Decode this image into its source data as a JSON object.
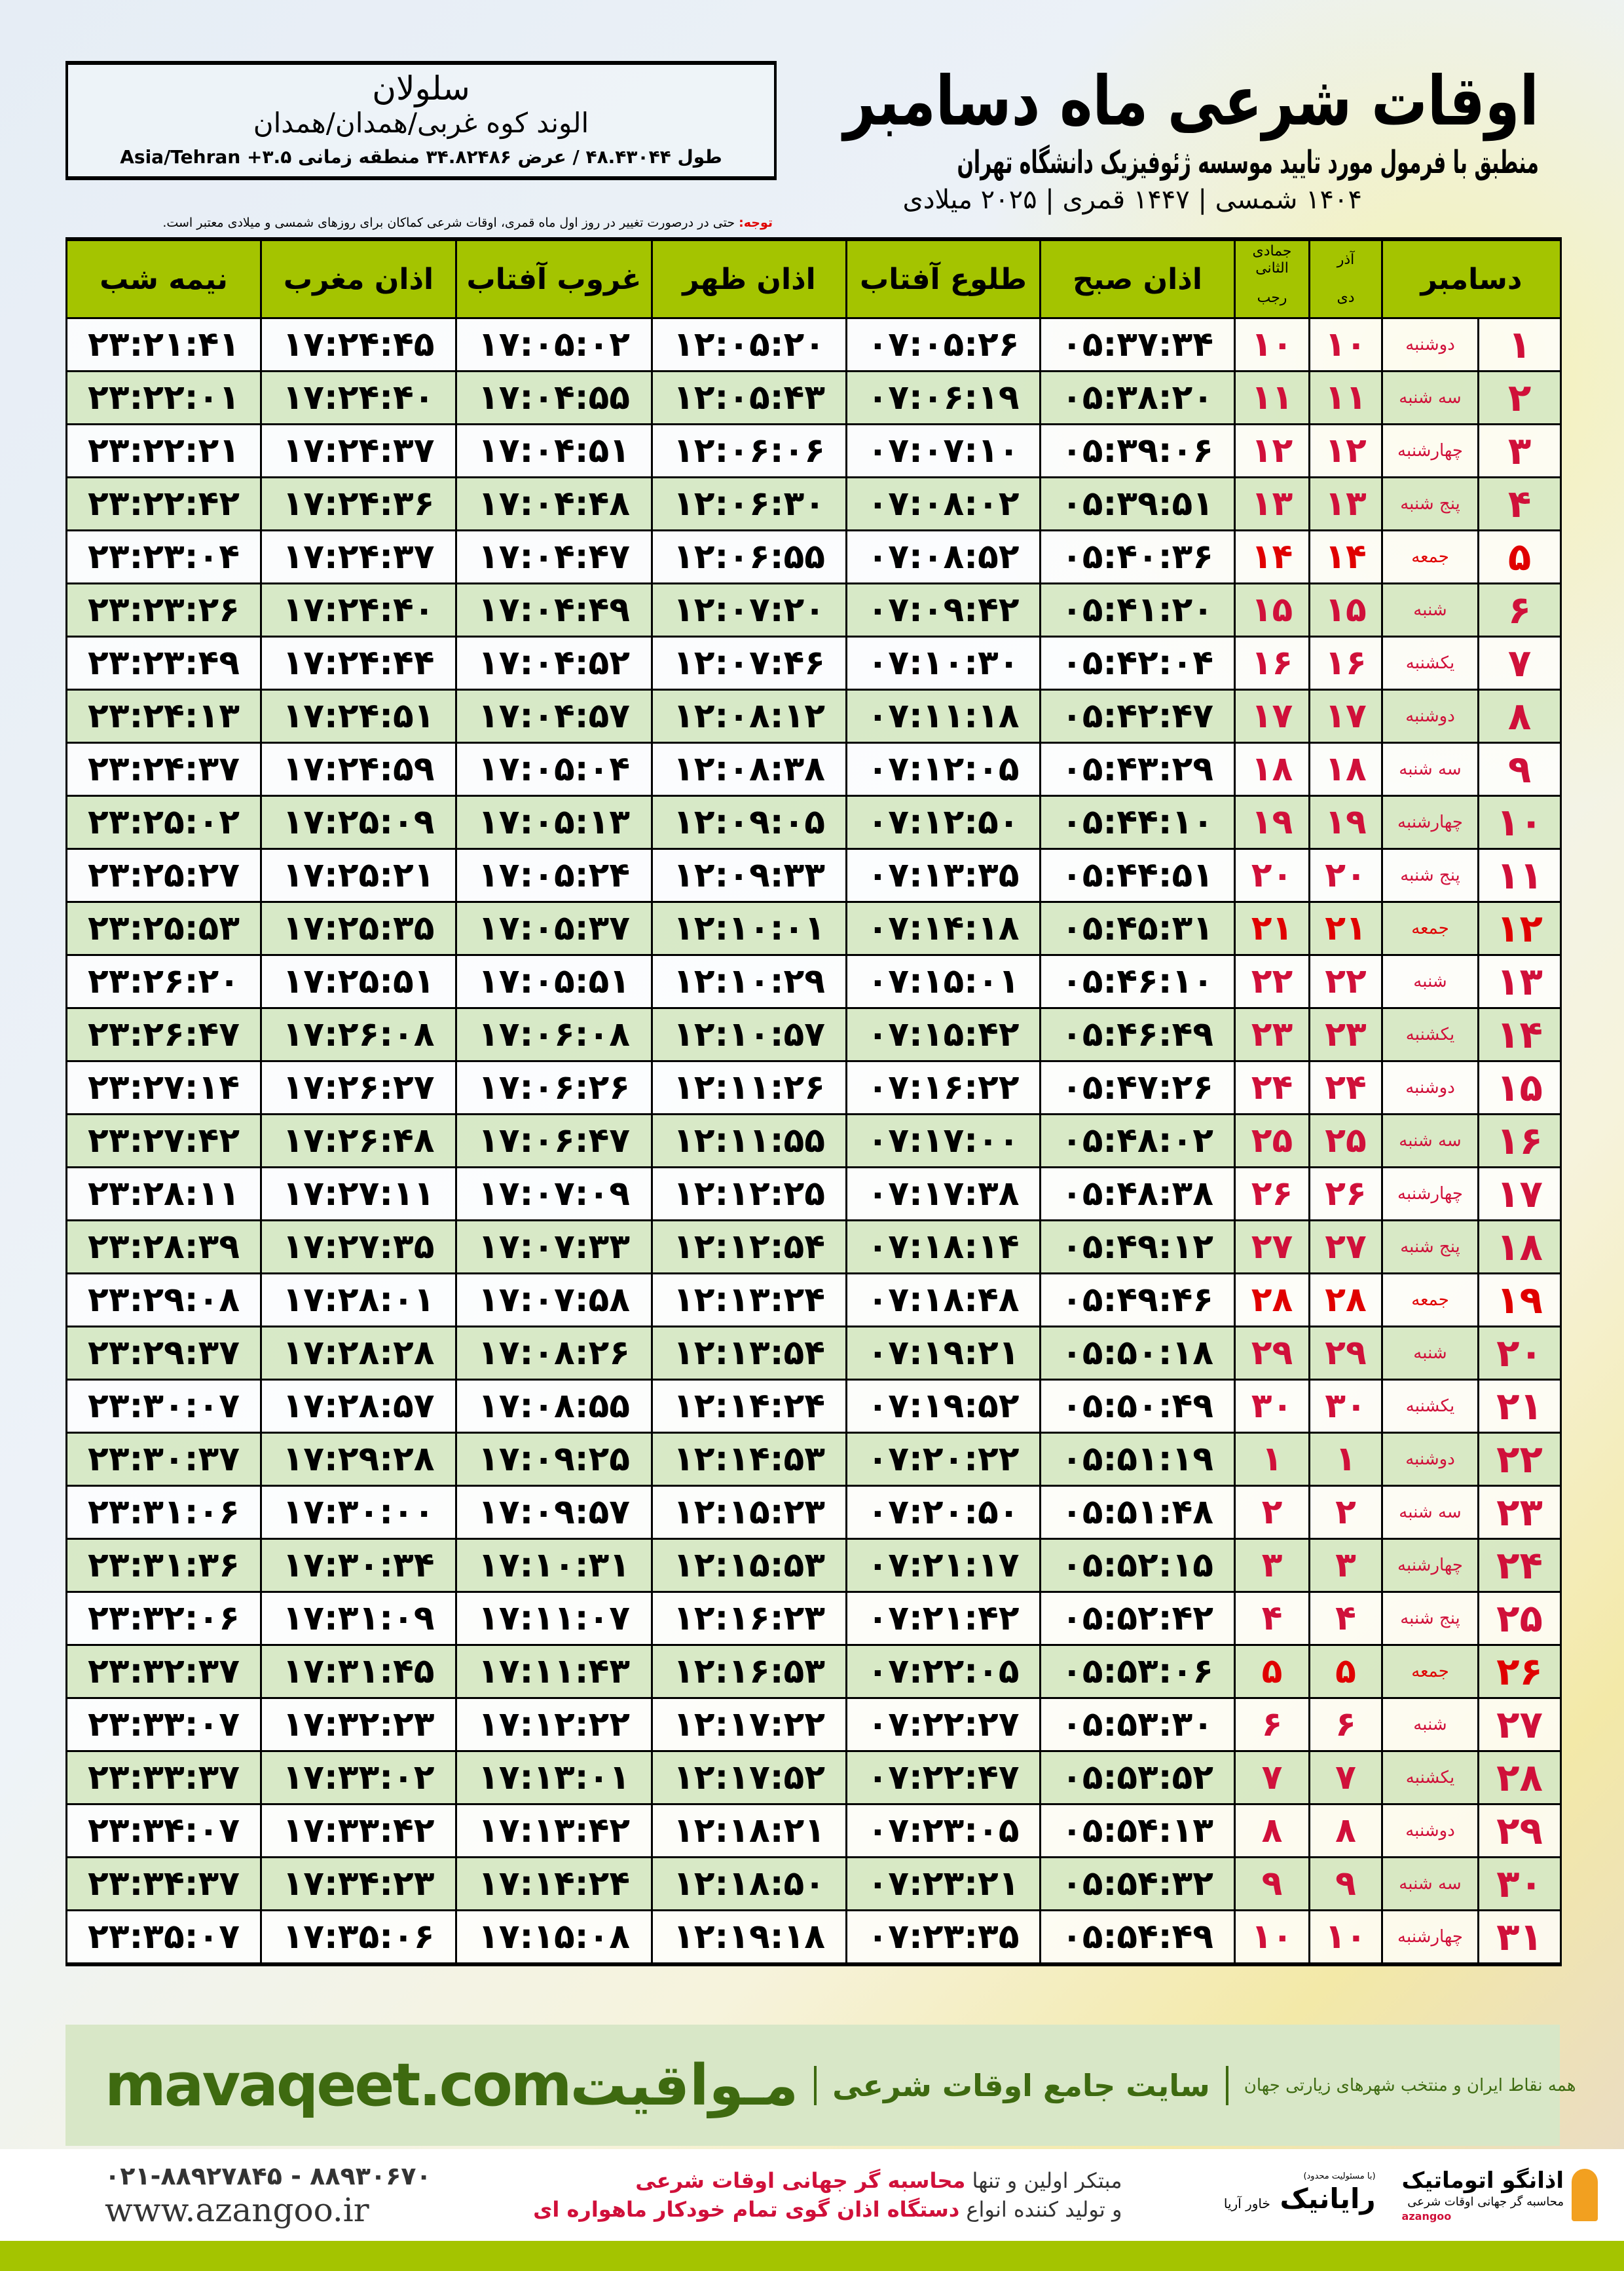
{
  "header": {
    "title": "اوقات شرعی ماه دسامبر",
    "subtitle": "منطبق با فرمول مورد تایید موسسه ژئوفیزیک دانشگاه تهران",
    "dates": "۱۴۰۴ شمسی | ۱۴۴۷ قمری | ۲۰۲۵ میلادی"
  },
  "location": {
    "name": "سلولان",
    "path": "الوند کوه غربی/همدان/همدان",
    "coords": "طول ۴۸.۴۳۰۴۴ / عرض ۳۴.۸۲۴۸۶ منطقه زمانی ۳.۵+ Asia/Tehran"
  },
  "note": {
    "label": "توجه:",
    "text": " حتی در درصورت تغییر در روز اول ماه قمری، اوقات شرعی کماکان برای روزهای شمسی و میلادی معتبر است."
  },
  "table": {
    "headers": {
      "month": "دسامبر",
      "solar_top": "آذر",
      "solar_bottom": "دی",
      "lunar_top": "جمادی الثانی",
      "lunar_bottom": "رجب",
      "fajr": "اذان صبح",
      "sunrise": "طلوع آفتاب",
      "dhuhr": "اذان ظهر",
      "sunset": "غروب آفتاب",
      "maghrib": "اذان مغرب",
      "midnight": "نیمه شب"
    },
    "friday_color": "#e00000",
    "header_color": "#a4c400",
    "rows": [
      [
        "۱",
        "دوشنبه",
        "۱۰",
        "۱۰",
        "۰۵:۳۷:۳۴",
        "۰۷:۰۵:۲۶",
        "۱۲:۰۵:۲۰",
        "۱۷:۰۵:۰۲",
        "۱۷:۲۴:۴۵",
        "۲۳:۲۱:۴۱"
      ],
      [
        "۲",
        "سه شنبه",
        "۱۱",
        "۱۱",
        "۰۵:۳۸:۲۰",
        "۰۷:۰۶:۱۹",
        "۱۲:۰۵:۴۳",
        "۱۷:۰۴:۵۵",
        "۱۷:۲۴:۴۰",
        "۲۳:۲۲:۰۱"
      ],
      [
        "۳",
        "چهارشنبه",
        "۱۲",
        "۱۲",
        "۰۵:۳۹:۰۶",
        "۰۷:۰۷:۱۰",
        "۱۲:۰۶:۰۶",
        "۱۷:۰۴:۵۱",
        "۱۷:۲۴:۳۷",
        "۲۳:۲۲:۲۱"
      ],
      [
        "۴",
        "پنج شنبه",
        "۱۳",
        "۱۳",
        "۰۵:۳۹:۵۱",
        "۰۷:۰۸:۰۲",
        "۱۲:۰۶:۳۰",
        "۱۷:۰۴:۴۸",
        "۱۷:۲۴:۳۶",
        "۲۳:۲۲:۴۲"
      ],
      [
        "۵",
        "جمعه",
        "۱۴",
        "۱۴",
        "۰۵:۴۰:۳۶",
        "۰۷:۰۸:۵۲",
        "۱۲:۰۶:۵۵",
        "۱۷:۰۴:۴۷",
        "۱۷:۲۴:۳۷",
        "۲۳:۲۳:۰۴"
      ],
      [
        "۶",
        "شنبه",
        "۱۵",
        "۱۵",
        "۰۵:۴۱:۲۰",
        "۰۷:۰۹:۴۲",
        "۱۲:۰۷:۲۰",
        "۱۷:۰۴:۴۹",
        "۱۷:۲۴:۴۰",
        "۲۳:۲۳:۲۶"
      ],
      [
        "۷",
        "یکشنبه",
        "۱۶",
        "۱۶",
        "۰۵:۴۲:۰۴",
        "۰۷:۱۰:۳۰",
        "۱۲:۰۷:۴۶",
        "۱۷:۰۴:۵۲",
        "۱۷:۲۴:۴۴",
        "۲۳:۲۳:۴۹"
      ],
      [
        "۸",
        "دوشنبه",
        "۱۷",
        "۱۷",
        "۰۵:۴۲:۴۷",
        "۰۷:۱۱:۱۸",
        "۱۲:۰۸:۱۲",
        "۱۷:۰۴:۵۷",
        "۱۷:۲۴:۵۱",
        "۲۳:۲۴:۱۳"
      ],
      [
        "۹",
        "سه شنبه",
        "۱۸",
        "۱۸",
        "۰۵:۴۳:۲۹",
        "۰۷:۱۲:۰۵",
        "۱۲:۰۸:۳۸",
        "۱۷:۰۵:۰۴",
        "۱۷:۲۴:۵۹",
        "۲۳:۲۴:۳۷"
      ],
      [
        "۱۰",
        "چهارشنبه",
        "۱۹",
        "۱۹",
        "۰۵:۴۴:۱۰",
        "۰۷:۱۲:۵۰",
        "۱۲:۰۹:۰۵",
        "۱۷:۰۵:۱۳",
        "۱۷:۲۵:۰۹",
        "۲۳:۲۵:۰۲"
      ],
      [
        "۱۱",
        "پنج شنبه",
        "۲۰",
        "۲۰",
        "۰۵:۴۴:۵۱",
        "۰۷:۱۳:۳۵",
        "۱۲:۰۹:۳۳",
        "۱۷:۰۵:۲۴",
        "۱۷:۲۵:۲۱",
        "۲۳:۲۵:۲۷"
      ],
      [
        "۱۲",
        "جمعه",
        "۲۱",
        "۲۱",
        "۰۵:۴۵:۳۱",
        "۰۷:۱۴:۱۸",
        "۱۲:۱۰:۰۱",
        "۱۷:۰۵:۳۷",
        "۱۷:۲۵:۳۵",
        "۲۳:۲۵:۵۳"
      ],
      [
        "۱۳",
        "شنبه",
        "۲۲",
        "۲۲",
        "۰۵:۴۶:۱۰",
        "۰۷:۱۵:۰۱",
        "۱۲:۱۰:۲۹",
        "۱۷:۰۵:۵۱",
        "۱۷:۲۵:۵۱",
        "۲۳:۲۶:۲۰"
      ],
      [
        "۱۴",
        "یکشنبه",
        "۲۳",
        "۲۳",
        "۰۵:۴۶:۴۹",
        "۰۷:۱۵:۴۲",
        "۱۲:۱۰:۵۷",
        "۱۷:۰۶:۰۸",
        "۱۷:۲۶:۰۸",
        "۲۳:۲۶:۴۷"
      ],
      [
        "۱۵",
        "دوشنبه",
        "۲۴",
        "۲۴",
        "۰۵:۴۷:۲۶",
        "۰۷:۱۶:۲۲",
        "۱۲:۱۱:۲۶",
        "۱۷:۰۶:۲۶",
        "۱۷:۲۶:۲۷",
        "۲۳:۲۷:۱۴"
      ],
      [
        "۱۶",
        "سه شنبه",
        "۲۵",
        "۲۵",
        "۰۵:۴۸:۰۲",
        "۰۷:۱۷:۰۰",
        "۱۲:۱۱:۵۵",
        "۱۷:۰۶:۴۷",
        "۱۷:۲۶:۴۸",
        "۲۳:۲۷:۴۲"
      ],
      [
        "۱۷",
        "چهارشنبه",
        "۲۶",
        "۲۶",
        "۰۵:۴۸:۳۸",
        "۰۷:۱۷:۳۸",
        "۱۲:۱۲:۲۵",
        "۱۷:۰۷:۰۹",
        "۱۷:۲۷:۱۱",
        "۲۳:۲۸:۱۱"
      ],
      [
        "۱۸",
        "پنج شنبه",
        "۲۷",
        "۲۷",
        "۰۵:۴۹:۱۲",
        "۰۷:۱۸:۱۴",
        "۱۲:۱۲:۵۴",
        "۱۷:۰۷:۳۳",
        "۱۷:۲۷:۳۵",
        "۲۳:۲۸:۳۹"
      ],
      [
        "۱۹",
        "جمعه",
        "۲۸",
        "۲۸",
        "۰۵:۴۹:۴۶",
        "۰۷:۱۸:۴۸",
        "۱۲:۱۳:۲۴",
        "۱۷:۰۷:۵۸",
        "۱۷:۲۸:۰۱",
        "۲۳:۲۹:۰۸"
      ],
      [
        "۲۰",
        "شنبه",
        "۲۹",
        "۲۹",
        "۰۵:۵۰:۱۸",
        "۰۷:۱۹:۲۱",
        "۱۲:۱۳:۵۴",
        "۱۷:۰۸:۲۶",
        "۱۷:۲۸:۲۸",
        "۲۳:۲۹:۳۷"
      ],
      [
        "۲۱",
        "یکشنبه",
        "۳۰",
        "۳۰",
        "۰۵:۵۰:۴۹",
        "۰۷:۱۹:۵۲",
        "۱۲:۱۴:۲۴",
        "۱۷:۰۸:۵۵",
        "۱۷:۲۸:۵۷",
        "۲۳:۳۰:۰۷"
      ],
      [
        "۲۲",
        "دوشنبه",
        "۱",
        "۱",
        "۰۵:۵۱:۱۹",
        "۰۷:۲۰:۲۲",
        "۱۲:۱۴:۵۳",
        "۱۷:۰۹:۲۵",
        "۱۷:۲۹:۲۸",
        "۲۳:۳۰:۳۷"
      ],
      [
        "۲۳",
        "سه شنبه",
        "۲",
        "۲",
        "۰۵:۵۱:۴۸",
        "۰۷:۲۰:۵۰",
        "۱۲:۱۵:۲۳",
        "۱۷:۰۹:۵۷",
        "۱۷:۳۰:۰۰",
        "۲۳:۳۱:۰۶"
      ],
      [
        "۲۴",
        "چهارشنبه",
        "۳",
        "۳",
        "۰۵:۵۲:۱۵",
        "۰۷:۲۱:۱۷",
        "۱۲:۱۵:۵۳",
        "۱۷:۱۰:۳۱",
        "۱۷:۳۰:۳۴",
        "۲۳:۳۱:۳۶"
      ],
      [
        "۲۵",
        "پنج شنبه",
        "۴",
        "۴",
        "۰۵:۵۲:۴۲",
        "۰۷:۲۱:۴۲",
        "۱۲:۱۶:۲۳",
        "۱۷:۱۱:۰۷",
        "۱۷:۳۱:۰۹",
        "۲۳:۳۲:۰۶"
      ],
      [
        "۲۶",
        "جمعه",
        "۵",
        "۵",
        "۰۵:۵۳:۰۶",
        "۰۷:۲۲:۰۵",
        "۱۲:۱۶:۵۳",
        "۱۷:۱۱:۴۳",
        "۱۷:۳۱:۴۵",
        "۲۳:۳۲:۳۷"
      ],
      [
        "۲۷",
        "شنبه",
        "۶",
        "۶",
        "۰۵:۵۳:۳۰",
        "۰۷:۲۲:۲۷",
        "۱۲:۱۷:۲۲",
        "۱۷:۱۲:۲۲",
        "۱۷:۳۲:۲۳",
        "۲۳:۳۳:۰۷"
      ],
      [
        "۲۸",
        "یکشنبه",
        "۷",
        "۷",
        "۰۵:۵۳:۵۲",
        "۰۷:۲۲:۴۷",
        "۱۲:۱۷:۵۲",
        "۱۷:۱۳:۰۱",
        "۱۷:۳۳:۰۲",
        "۲۳:۳۳:۳۷"
      ],
      [
        "۲۹",
        "دوشنبه",
        "۸",
        "۸",
        "۰۵:۵۴:۱۳",
        "۰۷:۲۳:۰۵",
        "۱۲:۱۸:۲۱",
        "۱۷:۱۳:۴۲",
        "۱۷:۳۳:۴۲",
        "۲۳:۳۴:۰۷"
      ],
      [
        "۳۰",
        "سه شنبه",
        "۹",
        "۹",
        "۰۵:۵۴:۳۲",
        "۰۷:۲۳:۲۱",
        "۱۲:۱۸:۵۰",
        "۱۷:۱۴:۲۴",
        "۱۷:۳۴:۲۳",
        "۲۳:۳۴:۳۷"
      ],
      [
        "۳۱",
        "چهارشنبه",
        "۱۰",
        "۱۰",
        "۰۵:۵۴:۴۹",
        "۰۷:۲۳:۳۵",
        "۱۲:۱۹:۱۸",
        "۱۷:۱۵:۰۸",
        "۱۷:۳۵:۰۶",
        "۲۳:۳۵:۰۷"
      ]
    ]
  },
  "footer": {
    "brand": "مـواقیت",
    "tagline": "سایت جامع اوقات شرعی",
    "subtagline": "همه نقاط ایران و منتخب شهرهای زیارتی جهان",
    "url": "mavaqeet.com",
    "brand_color": "#3e6a10"
  },
  "bottom": {
    "phones": "۰۲۱-۸۸۹۲۷۸۴۵ - ۸۸۹۳۰۶۷۰",
    "site": "www.azangoo.ir",
    "promo1_a": "مبتکر اولین و تنها ",
    "promo1_b": "محاسبه گر جهانی اوقات شرعی",
    "promo2_a": "و تولید کننده انواع ",
    "promo2_b": "دستگاه اذان گوی تمام خودکار ماهواره ای",
    "logo1": "رایانیک",
    "logo1_small": "(با مسئولیت محدود)",
    "logo1_side": "خاور آریا",
    "logo2": "اذانگو اتوماتیک",
    "logo2_sub": "محاسبه گر جهانی اوقات شرعی",
    "logo2_en": "azangoo"
  }
}
